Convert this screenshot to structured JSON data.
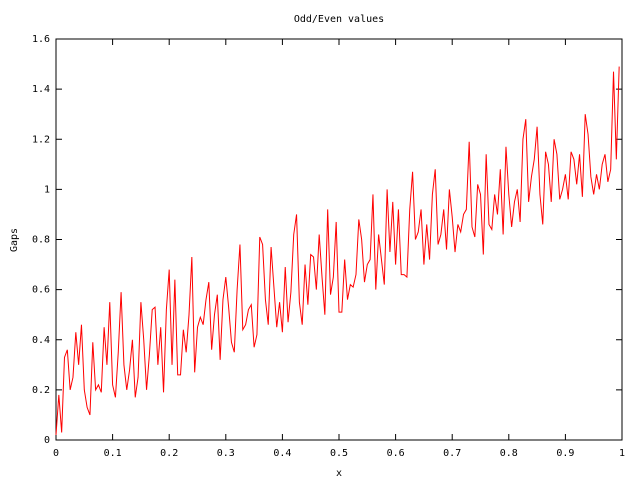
{
  "chart_data": {
    "type": "line",
    "title": "Odd/Even values",
    "x_label": "x",
    "y_label": "Gaps",
    "xlim": [
      0,
      1
    ],
    "ylim": [
      0,
      1.6
    ],
    "xticks": [
      0,
      0.1,
      0.2,
      0.3,
      0.4,
      0.5,
      0.6,
      0.7,
      0.8,
      0.9,
      1
    ],
    "yticks": [
      0,
      0.2,
      0.4,
      0.6,
      0.8,
      1,
      1.2,
      1.4,
      1.6
    ],
    "x": [
      0,
      0.005,
      0.01,
      0.015,
      0.02,
      0.025,
      0.03,
      0.035,
      0.04,
      0.045,
      0.05,
      0.055,
      0.06,
      0.065,
      0.07,
      0.075,
      0.08,
      0.085,
      0.09,
      0.095,
      0.1,
      0.105,
      0.11,
      0.115,
      0.12,
      0.125,
      0.13,
      0.135,
      0.14,
      0.145,
      0.15,
      0.155,
      0.16,
      0.165,
      0.17,
      0.175,
      0.18,
      0.185,
      0.19,
      0.195,
      0.2,
      0.205,
      0.21,
      0.215,
      0.22,
      0.225,
      0.23,
      0.235,
      0.24,
      0.245,
      0.25,
      0.255,
      0.26,
      0.265,
      0.27,
      0.275,
      0.28,
      0.285,
      0.29,
      0.295,
      0.3,
      0.305,
      0.31,
      0.315,
      0.32,
      0.325,
      0.33,
      0.335,
      0.34,
      0.345,
      0.35,
      0.355,
      0.36,
      0.365,
      0.37,
      0.375,
      0.38,
      0.385,
      0.39,
      0.395,
      0.4,
      0.405,
      0.41,
      0.415,
      0.42,
      0.425,
      0.43,
      0.435,
      0.44,
      0.445,
      0.45,
      0.455,
      0.46,
      0.465,
      0.47,
      0.475,
      0.48,
      0.485,
      0.49,
      0.495,
      0.5,
      0.505,
      0.51,
      0.515,
      0.52,
      0.525,
      0.53,
      0.535,
      0.54,
      0.545,
      0.55,
      0.555,
      0.56,
      0.565,
      0.57,
      0.575,
      0.58,
      0.585,
      0.59,
      0.595,
      0.6,
      0.605,
      0.61,
      0.615,
      0.62,
      0.625,
      0.63,
      0.635,
      0.64,
      0.645,
      0.65,
      0.655,
      0.66,
      0.665,
      0.67,
      0.675,
      0.68,
      0.685,
      0.69,
      0.695,
      0.7,
      0.705,
      0.71,
      0.715,
      0.72,
      0.725,
      0.73,
      0.735,
      0.74,
      0.745,
      0.75,
      0.755,
      0.76,
      0.765,
      0.77,
      0.775,
      0.78,
      0.785,
      0.79,
      0.795,
      0.8,
      0.805,
      0.81,
      0.815,
      0.82,
      0.825,
      0.83,
      0.835,
      0.84,
      0.845,
      0.85,
      0.855,
      0.86,
      0.865,
      0.87,
      0.875,
      0.88,
      0.885,
      0.89,
      0.895,
      0.9,
      0.905,
      0.91,
      0.915,
      0.92,
      0.925,
      0.93,
      0.935,
      0.94,
      0.945,
      0.95,
      0.955,
      0.96,
      0.965,
      0.97,
      0.975,
      0.98,
      0.985,
      0.99,
      0.995
    ],
    "series": [
      {
        "color": "#ff0000",
        "values": [
          0.02,
          0.18,
          0.03,
          0.33,
          0.36,
          0.2,
          0.25,
          0.43,
          0.3,
          0.46,
          0.2,
          0.13,
          0.1,
          0.39,
          0.2,
          0.22,
          0.19,
          0.45,
          0.3,
          0.55,
          0.22,
          0.17,
          0.35,
          0.59,
          0.3,
          0.2,
          0.28,
          0.4,
          0.17,
          0.25,
          0.55,
          0.4,
          0.2,
          0.34,
          0.52,
          0.53,
          0.3,
          0.45,
          0.19,
          0.52,
          0.68,
          0.3,
          0.64,
          0.26,
          0.26,
          0.44,
          0.35,
          0.5,
          0.73,
          0.27,
          0.45,
          0.49,
          0.46,
          0.56,
          0.63,
          0.36,
          0.5,
          0.58,
          0.32,
          0.56,
          0.65,
          0.53,
          0.39,
          0.35,
          0.6,
          0.78,
          0.44,
          0.46,
          0.52,
          0.54,
          0.37,
          0.42,
          0.81,
          0.78,
          0.56,
          0.46,
          0.77,
          0.61,
          0.45,
          0.55,
          0.43,
          0.69,
          0.47,
          0.59,
          0.82,
          0.9,
          0.55,
          0.46,
          0.7,
          0.54,
          0.74,
          0.73,
          0.6,
          0.82,
          0.65,
          0.5,
          0.92,
          0.58,
          0.65,
          0.87,
          0.51,
          0.51,
          0.72,
          0.56,
          0.62,
          0.61,
          0.66,
          0.88,
          0.8,
          0.63,
          0.7,
          0.72,
          0.98,
          0.6,
          0.82,
          0.72,
          0.62,
          1.0,
          0.75,
          0.95,
          0.7,
          0.92,
          0.66,
          0.66,
          0.65,
          0.92,
          1.07,
          0.8,
          0.83,
          0.92,
          0.7,
          0.86,
          0.72,
          0.98,
          1.08,
          0.78,
          0.82,
          0.92,
          0.76,
          1.0,
          0.89,
          0.75,
          0.86,
          0.83,
          0.9,
          0.92,
          1.19,
          0.85,
          0.81,
          1.02,
          0.98,
          0.74,
          1.14,
          0.86,
          0.84,
          0.98,
          0.9,
          1.08,
          0.82,
          1.17,
          0.98,
          0.85,
          0.95,
          1.0,
          0.87,
          1.2,
          1.28,
          0.95,
          1.05,
          1.12,
          1.25,
          0.98,
          0.86,
          1.15,
          1.1,
          0.95,
          1.2,
          1.14,
          0.96,
          1.0,
          1.06,
          0.96,
          1.15,
          1.12,
          1.02,
          1.14,
          0.97,
          1.3,
          1.22,
          1.05,
          0.98,
          1.06,
          1.0,
          1.1,
          1.14,
          1.03,
          1.08,
          1.47,
          1.12,
          1.49
        ]
      }
    ]
  }
}
